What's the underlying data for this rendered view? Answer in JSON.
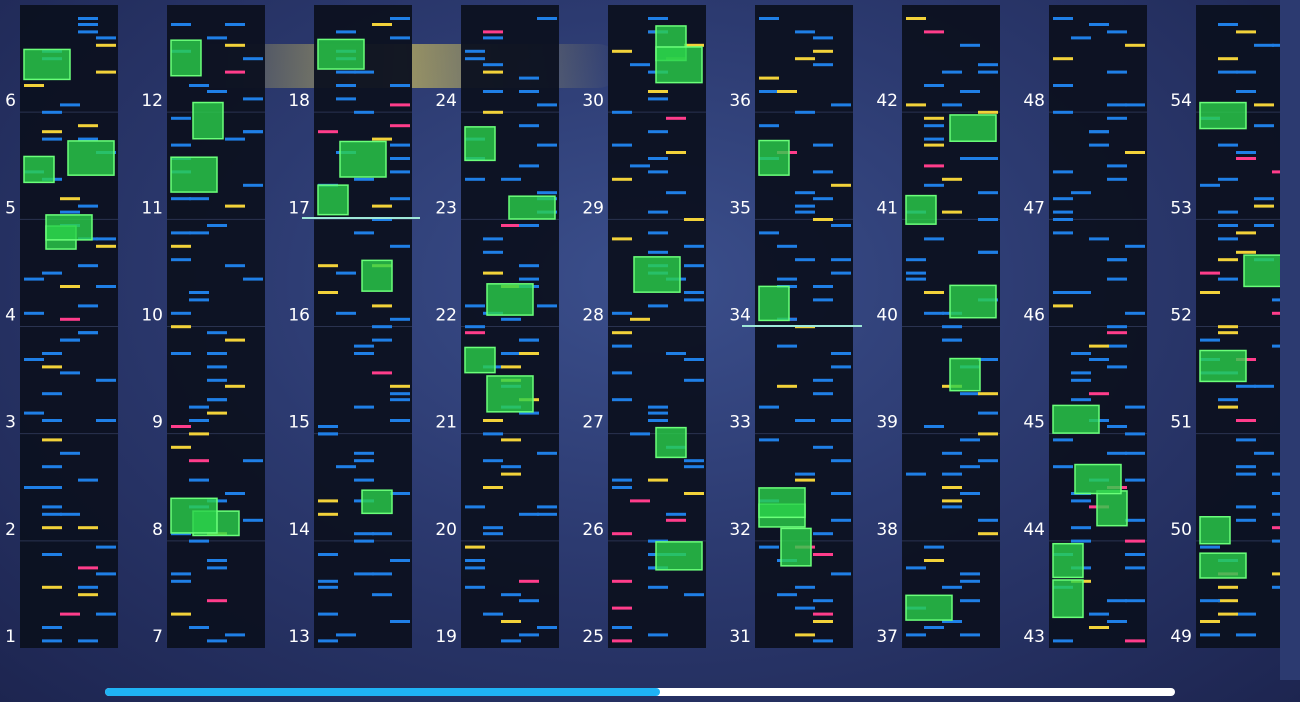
{
  "columns": [
    {
      "measures": [
        1,
        2,
        3,
        4,
        5,
        6
      ]
    },
    {
      "measures": [
        7,
        8,
        9,
        10,
        11,
        12
      ]
    },
    {
      "measures": [
        13,
        14,
        15,
        16,
        17,
        18
      ]
    },
    {
      "measures": [
        19,
        20,
        21,
        22,
        23,
        24
      ]
    },
    {
      "measures": [
        25,
        26,
        27,
        28,
        29,
        30
      ]
    },
    {
      "measures": [
        31,
        32,
        33,
        34,
        35,
        36
      ]
    },
    {
      "measures": [
        37,
        38,
        39,
        40,
        41,
        42
      ]
    },
    {
      "measures": [
        43,
        44,
        45,
        46,
        47,
        48
      ]
    },
    {
      "measures": [
        49,
        50,
        51,
        52,
        53,
        54
      ]
    }
  ]
}
